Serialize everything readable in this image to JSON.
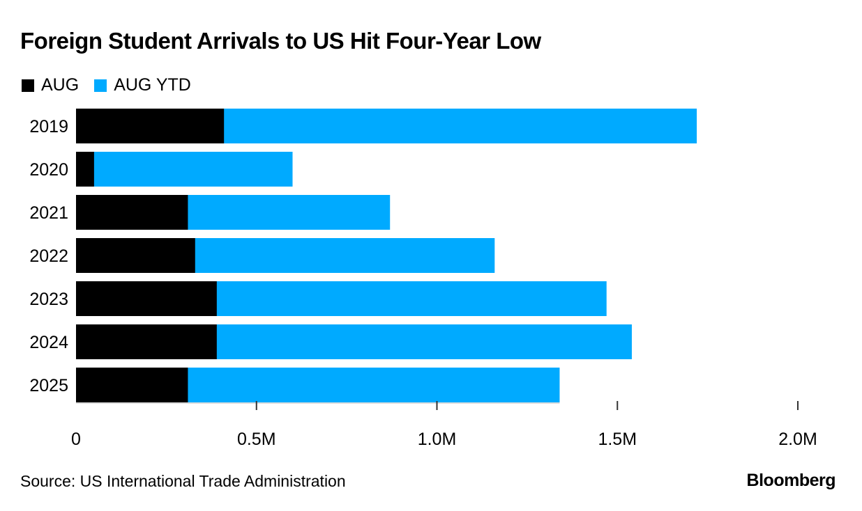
{
  "chart_data": {
    "type": "bar",
    "orientation": "horizontal",
    "title": "Foreign Student Arrivals to US Hit Four-Year Low",
    "categories": [
      "2019",
      "2020",
      "2021",
      "2022",
      "2023",
      "2024",
      "2025"
    ],
    "series": [
      {
        "name": "AUG",
        "color": "#000000",
        "values": [
          0.41,
          0.05,
          0.31,
          0.33,
          0.39,
          0.39,
          0.31
        ]
      },
      {
        "name": "AUG YTD",
        "color": "#00AAFF",
        "values": [
          1.72,
          0.6,
          0.87,
          1.16,
          1.47,
          1.54,
          1.34
        ]
      }
    ],
    "overlay": true,
    "xlabel": "",
    "ylabel": "",
    "xlim": [
      0,
      2.0
    ],
    "x_ticks": [
      0,
      0.5,
      1.0,
      1.5,
      2.0
    ],
    "x_tick_labels": [
      "0",
      "0.5M",
      "1.0M",
      "1.5M",
      "2.0M"
    ],
    "units": "millions",
    "legend_position": "top-left",
    "grid": false
  },
  "footer": {
    "source": "Source: US International Trade Administration",
    "brand": "Bloomberg"
  }
}
